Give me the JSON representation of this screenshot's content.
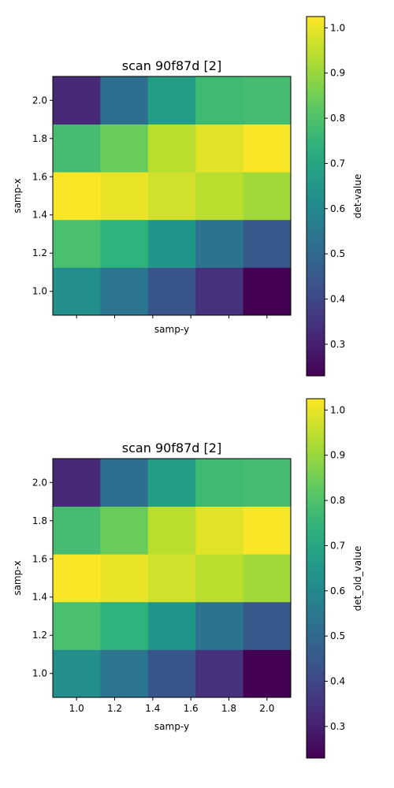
{
  "chart_data": [
    {
      "type": "heatmap",
      "title": "scan 90f87d [2]",
      "xlabel": "samp-y",
      "ylabel": "samp-x",
      "colorbar_label": "det-value",
      "colormap": "viridis",
      "x": [
        1.0,
        1.25,
        1.5,
        1.75,
        2.0
      ],
      "y": [
        1.0,
        1.25,
        1.5,
        1.75,
        2.0
      ],
      "x_ticks": [
        1.0,
        1.2,
        1.4,
        1.6,
        1.8,
        2.0
      ],
      "x_tick_labels_visible": false,
      "y_ticks": [
        "1.0",
        "1.2",
        "1.4",
        "1.6",
        "1.8",
        "2.0"
      ],
      "xlim": [
        0.875,
        2.125
      ],
      "ylim": [
        0.875,
        2.125
      ],
      "values": [
        [
          0.62,
          0.54,
          0.44,
          0.34,
          0.23
        ],
        [
          0.79,
          0.74,
          0.64,
          0.53,
          0.45
        ],
        [
          1.02,
          1.0,
          0.97,
          0.94,
          0.91
        ],
        [
          0.78,
          0.84,
          0.94,
          0.99,
          1.02
        ],
        [
          0.32,
          0.52,
          0.67,
          0.77,
          0.78
        ]
      ],
      "vmin": 0.23,
      "vmax": 1.025,
      "colorbar_ticks": [
        "0.3",
        "0.4",
        "0.5",
        "0.6",
        "0.7",
        "0.8",
        "0.9",
        "1.0"
      ]
    },
    {
      "type": "heatmap",
      "title": "scan 90f87d [2]",
      "xlabel": "samp-y",
      "ylabel": "samp-x",
      "colorbar_label": "det_old_value",
      "colormap": "viridis",
      "x": [
        1.0,
        1.25,
        1.5,
        1.75,
        2.0
      ],
      "y": [
        1.0,
        1.25,
        1.5,
        1.75,
        2.0
      ],
      "x_ticks": [
        "1.0",
        "1.2",
        "1.4",
        "1.6",
        "1.8",
        "2.0"
      ],
      "x_tick_labels_visible": true,
      "y_ticks": [
        "1.0",
        "1.2",
        "1.4",
        "1.6",
        "1.8",
        "2.0"
      ],
      "xlim": [
        0.875,
        2.125
      ],
      "ylim": [
        0.875,
        2.125
      ],
      "values": [
        [
          0.62,
          0.54,
          0.44,
          0.34,
          0.23
        ],
        [
          0.79,
          0.74,
          0.64,
          0.53,
          0.45
        ],
        [
          1.02,
          1.0,
          0.97,
          0.94,
          0.91
        ],
        [
          0.78,
          0.84,
          0.94,
          0.99,
          1.02
        ],
        [
          0.32,
          0.52,
          0.67,
          0.77,
          0.78
        ]
      ],
      "vmin": 0.23,
      "vmax": 1.025,
      "colorbar_ticks": [
        "0.3",
        "0.4",
        "0.5",
        "0.6",
        "0.7",
        "0.8",
        "0.9",
        "1.0"
      ]
    }
  ]
}
